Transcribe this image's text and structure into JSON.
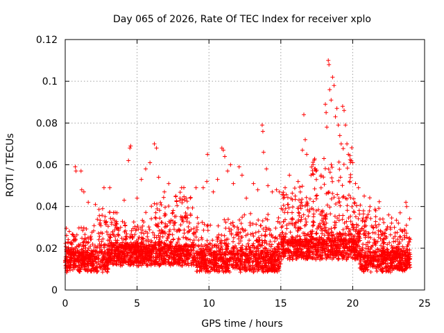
{
  "chart_data": {
    "type": "scatter",
    "title": "Day 065 of 2026, Rate Of TEC Index for receiver xplo",
    "xlabel": "GPS time / hours",
    "ylabel": "ROTI / TECUs",
    "xlim": [
      0,
      25
    ],
    "ylim": [
      0,
      0.12
    ],
    "x_ticks": [
      "0",
      "5",
      "10",
      "15",
      "20",
      "25"
    ],
    "y_ticks": [
      "0",
      "0.02",
      "0.04",
      "0.06",
      "0.08",
      "0.1",
      "0.12"
    ],
    "grid": true,
    "marker": "plus",
    "series": [
      {
        "color": "#ff0000",
        "points": [
          [
            0.05,
            0.015
          ],
          [
            0.3,
            0.018
          ],
          [
            0.7,
            0.059
          ],
          [
            0.75,
            0.057
          ],
          [
            1.1,
            0.057
          ],
          [
            1.15,
            0.048
          ],
          [
            1.3,
            0.047
          ],
          [
            1.6,
            0.042
          ],
          [
            2.1,
            0.041
          ],
          [
            2.6,
            0.039
          ],
          [
            2.7,
            0.049
          ],
          [
            3.1,
            0.049
          ],
          [
            3.6,
            0.037
          ],
          [
            4.1,
            0.043
          ],
          [
            4.4,
            0.062
          ],
          [
            4.5,
            0.068
          ],
          [
            4.55,
            0.069
          ],
          [
            5.0,
            0.044
          ],
          [
            5.3,
            0.053
          ],
          [
            5.6,
            0.058
          ],
          [
            5.9,
            0.061
          ],
          [
            6.2,
            0.07
          ],
          [
            6.35,
            0.068
          ],
          [
            6.5,
            0.054
          ],
          [
            6.9,
            0.047
          ],
          [
            7.2,
            0.051
          ],
          [
            7.7,
            0.045
          ],
          [
            8.1,
            0.049
          ],
          [
            8.3,
            0.043
          ],
          [
            8.7,
            0.044
          ],
          [
            9.1,
            0.049
          ],
          [
            9.6,
            0.049
          ],
          [
            9.9,
            0.065
          ],
          [
            9.85,
            0.052
          ],
          [
            10.3,
            0.047
          ],
          [
            10.6,
            0.053
          ],
          [
            10.9,
            0.068
          ],
          [
            11.0,
            0.067
          ],
          [
            11.1,
            0.064
          ],
          [
            11.3,
            0.057
          ],
          [
            11.5,
            0.06
          ],
          [
            11.7,
            0.051
          ],
          [
            12.1,
            0.059
          ],
          [
            12.3,
            0.055
          ],
          [
            12.6,
            0.044
          ],
          [
            13.1,
            0.051
          ],
          [
            13.4,
            0.048
          ],
          [
            13.7,
            0.079
          ],
          [
            13.75,
            0.076
          ],
          [
            13.8,
            0.066
          ],
          [
            14.0,
            0.058
          ],
          [
            14.1,
            0.05
          ],
          [
            14.4,
            0.047
          ],
          [
            14.7,
            0.048
          ],
          [
            14.9,
            0.047
          ],
          [
            15.3,
            0.049
          ],
          [
            15.6,
            0.055
          ],
          [
            16.0,
            0.045
          ],
          [
            16.2,
            0.052
          ],
          [
            16.5,
            0.067
          ],
          [
            16.6,
            0.084
          ],
          [
            16.7,
            0.072
          ],
          [
            16.8,
            0.065
          ],
          [
            17.1,
            0.055
          ],
          [
            17.4,
            0.058
          ],
          [
            17.8,
            0.055
          ],
          [
            18.0,
            0.063
          ],
          [
            18.1,
            0.089
          ],
          [
            18.15,
            0.085
          ],
          [
            18.2,
            0.078
          ],
          [
            18.3,
            0.11
          ],
          [
            18.35,
            0.108
          ],
          [
            18.4,
            0.096
          ],
          [
            18.5,
            0.091
          ],
          [
            18.6,
            0.102
          ],
          [
            18.7,
            0.098
          ],
          [
            18.8,
            0.083
          ],
          [
            18.9,
            0.087
          ],
          [
            19.0,
            0.079
          ],
          [
            19.1,
            0.074
          ],
          [
            19.2,
            0.07
          ],
          [
            19.3,
            0.088
          ],
          [
            19.4,
            0.086
          ],
          [
            19.5,
            0.079
          ],
          [
            19.6,
            0.07
          ],
          [
            19.7,
            0.065
          ],
          [
            19.9,
            0.062
          ],
          [
            20.0,
            0.061
          ],
          [
            20.2,
            0.051
          ],
          [
            20.4,
            0.049
          ],
          [
            20.8,
            0.045
          ],
          [
            21.2,
            0.04
          ],
          [
            21.6,
            0.038
          ],
          [
            22.1,
            0.034
          ],
          [
            22.5,
            0.036
          ],
          [
            22.9,
            0.03
          ],
          [
            23.3,
            0.037
          ],
          [
            23.6,
            0.029
          ],
          [
            23.7,
            0.042
          ],
          [
            23.75,
            0.04
          ],
          [
            23.9,
            0.023
          ],
          [
            24.0,
            0.016
          ]
        ]
      }
    ]
  }
}
